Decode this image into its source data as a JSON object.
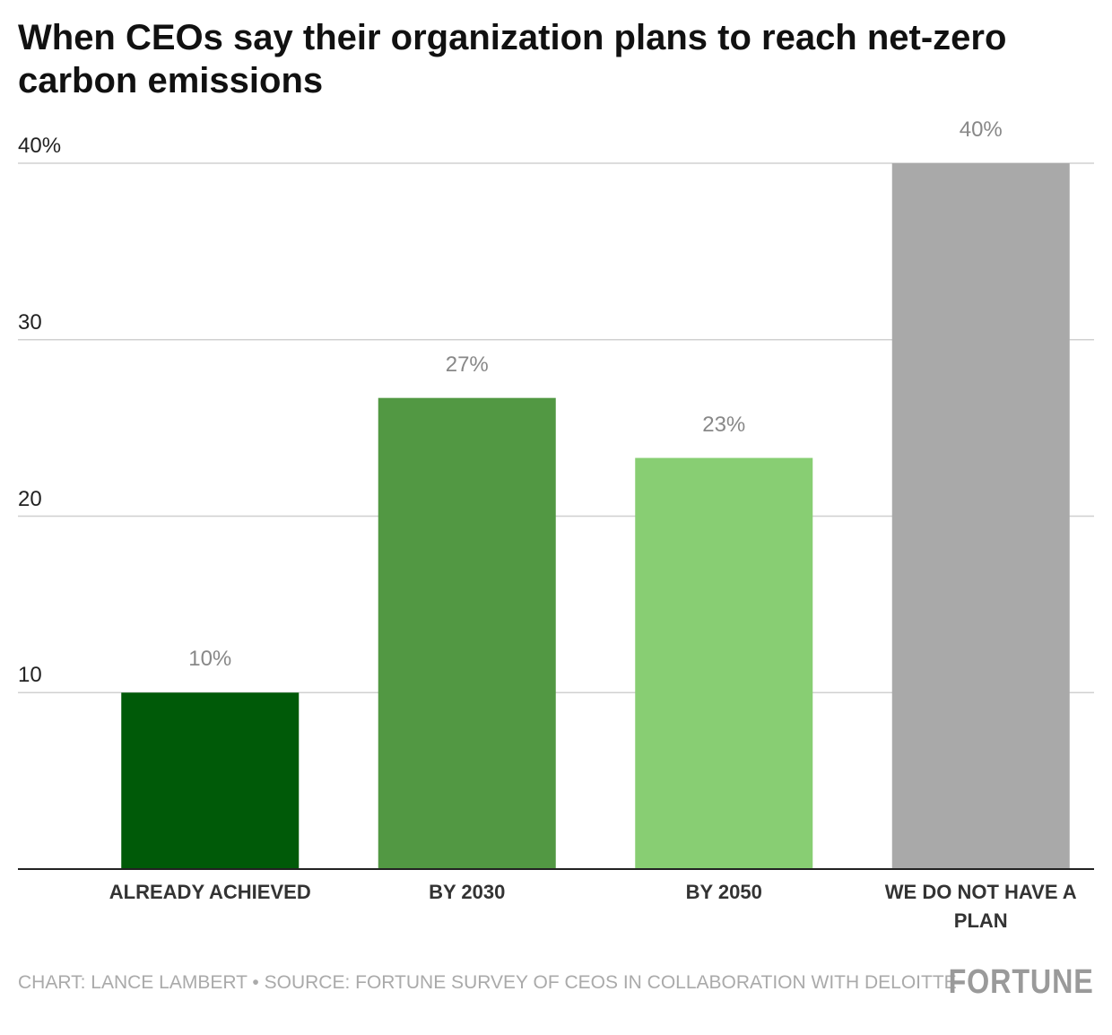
{
  "chart_data": {
    "type": "bar",
    "title": "When CEOs say their organization plans to reach net-zero carbon emissions",
    "categories": [
      "ALREADY ACHIEVED",
      "BY 2030",
      "BY 2050",
      "WE DO NOT HAVE A PLAN"
    ],
    "values": [
      10,
      26.7,
      23.3,
      40
    ],
    "value_labels": [
      "10%",
      "27%",
      "23%",
      "40%"
    ],
    "colors": [
      "#005a08",
      "#529843",
      "#88ce73",
      "#a9a9a9"
    ],
    "ylim": [
      0,
      40
    ],
    "yticks": [
      10,
      20,
      30,
      {
        "value": 40,
        "label": "40%"
      }
    ],
    "grid": true,
    "source": "CHART: LANCE LAMBERT • SOURCE: FORTUNE SURVEY OF CEOS IN COLLABORATION WITH DELOITTE",
    "brand": "FORTUNE"
  }
}
